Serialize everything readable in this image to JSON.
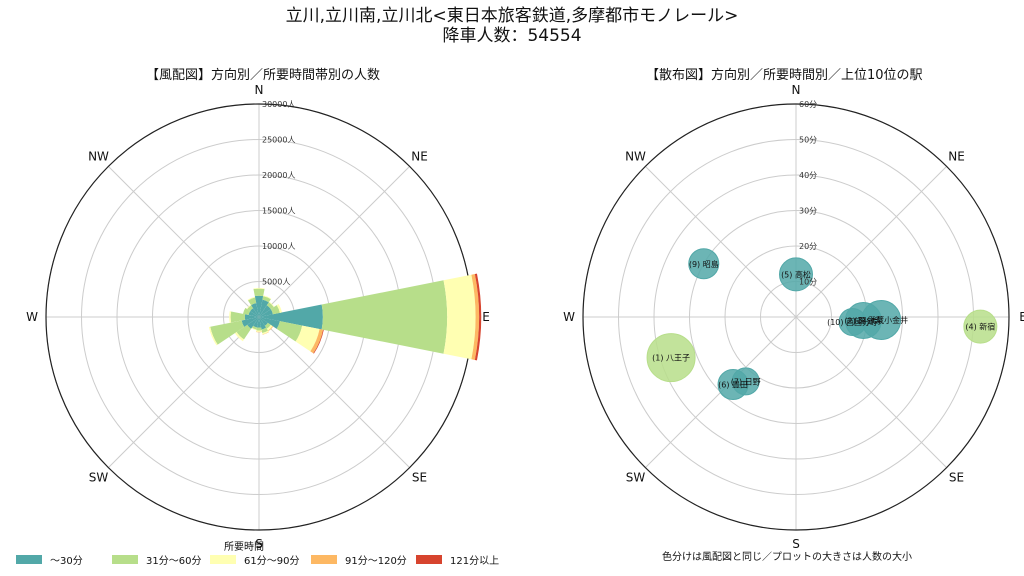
{
  "title": {
    "line1": "立川,立川南,立川北<東日本旅客鉄道,多摩都市モノレール>",
    "line2": "降車人数：54554"
  },
  "chart_data": [
    {
      "type": "polar-bar",
      "title": "【風配図】方向別／所要時間帯別の人数",
      "direction_labels": [
        "N",
        "NE",
        "E",
        "SE",
        "S",
        "SW",
        "W",
        "NW"
      ],
      "r_ticks": [
        5000,
        10000,
        15000,
        20000,
        25000,
        30000
      ],
      "r_tick_labels": [
        "5000人",
        "10000人",
        "15000人",
        "20000人",
        "25000人",
        "30000人"
      ],
      "rlim": [
        0,
        30000
      ],
      "grid": true,
      "legend_title": "所要時間",
      "legend_position": "bottom",
      "series": [
        {
          "name": "～30分",
          "color": "#52a8a8"
        },
        {
          "name": "31分～60分",
          "color": "#b7de8a"
        },
        {
          "name": "61分～90分",
          "color": "#ffffb2"
        },
        {
          "name": "91分～120分",
          "color": "#fdb863"
        },
        {
          "name": "121分以上",
          "color": "#d7442e"
        }
      ],
      "bars": [
        {
          "angle": 90,
          "width": 22.5,
          "values": [
            9000,
            17500,
            4000,
            500,
            300
          ]
        },
        {
          "angle": 112.5,
          "width": 22.5,
          "values": [
            3000,
            3200,
            2500,
            500,
            100
          ]
        },
        {
          "angle": 135,
          "width": 22.5,
          "values": [
            1500,
            500,
            300,
            100,
            0
          ]
        },
        {
          "angle": 157.5,
          "width": 22.5,
          "values": [
            1800,
            500,
            200,
            50,
            0
          ]
        },
        {
          "angle": 180,
          "width": 22.5,
          "values": [
            1500,
            400,
            200,
            50,
            0
          ]
        },
        {
          "angle": 202.5,
          "width": 22.5,
          "values": [
            1500,
            300,
            100,
            0,
            0
          ]
        },
        {
          "angle": 225,
          "width": 22.5,
          "values": [
            2000,
            1800,
            300,
            0,
            0
          ]
        },
        {
          "angle": 247.5,
          "width": 22.5,
          "values": [
            2500,
            4500,
            200,
            0,
            0
          ]
        },
        {
          "angle": 270,
          "width": 22.5,
          "values": [
            2000,
            2000,
            200,
            0,
            0
          ]
        },
        {
          "angle": 292.5,
          "width": 22.5,
          "values": [
            1500,
            800,
            0,
            0,
            0
          ]
        },
        {
          "angle": 315,
          "width": 22.5,
          "values": [
            1500,
            500,
            100,
            0,
            0
          ]
        },
        {
          "angle": 337.5,
          "width": 22.5,
          "values": [
            2000,
            800,
            100,
            0,
            0
          ]
        },
        {
          "angle": 0,
          "width": 22.5,
          "values": [
            3000,
            1000,
            100,
            0,
            0
          ]
        },
        {
          "angle": 22.5,
          "width": 22.5,
          "values": [
            2500,
            500,
            100,
            0,
            0
          ]
        },
        {
          "angle": 45,
          "width": 22.5,
          "values": [
            2000,
            500,
            100,
            0,
            0
          ]
        },
        {
          "angle": 67.5,
          "width": 22.5,
          "values": [
            2000,
            1000,
            300,
            0,
            0
          ]
        }
      ]
    },
    {
      "type": "polar-scatter",
      "title": "【散布図】方向別／所要時間別／上位10位の駅",
      "direction_labels": [
        "N",
        "NE",
        "E",
        "SE",
        "S",
        "SW",
        "W",
        "NW"
      ],
      "r_ticks": [
        10,
        20,
        30,
        40,
        50,
        60
      ],
      "r_tick_labels": [
        "10分",
        "20分",
        "30分",
        "40分",
        "50分",
        "60分"
      ],
      "rlim": [
        0,
        60
      ],
      "grid": true,
      "note": "色分けは風配図と同じ／プロットの大きさは人数の大小",
      "points": [
        {
          "label": "(1) 八王子",
          "angle": 252,
          "r": 37,
          "size": 16,
          "color": "#b7de8a"
        },
        {
          "label": "(4) 新宿",
          "angle": 93,
          "r": 52,
          "size": 11,
          "color": "#b7de8a"
        },
        {
          "label": "(6) 豊田",
          "angle": 223,
          "r": 26,
          "size": 10,
          "color": "#52a8a8"
        },
        {
          "label": "(7) 日野",
          "angle": 218,
          "r": 23,
          "size": 9,
          "color": "#52a8a8"
        },
        {
          "label": "(5) 高松",
          "angle": 0,
          "r": 12,
          "size": 11,
          "color": "#52a8a8"
        },
        {
          "label": "(9) 昭島",
          "angle": 300,
          "r": 30,
          "size": 10,
          "color": "#52a8a8"
        },
        {
          "label": "(10) 西国分寺",
          "angle": 95,
          "r": 16,
          "size": 9,
          "color": "#52a8a8"
        },
        {
          "label": "(2) 国分寺",
          "angle": 93,
          "r": 19,
          "size": 12,
          "color": "#52a8a8"
        },
        {
          "label": "(3) 武蔵小金井",
          "angle": 92,
          "r": 24,
          "size": 13,
          "color": "#52a8a8"
        }
      ]
    }
  ]
}
